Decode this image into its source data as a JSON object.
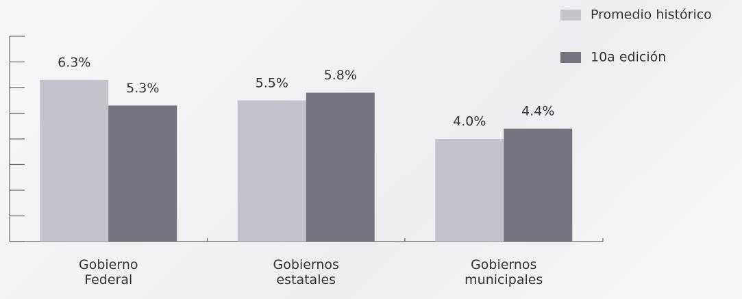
{
  "chart_data": {
    "type": "bar",
    "categories": [
      "Gobierno Federal",
      "Gobiernos estatales",
      "Gobiernos municipales"
    ],
    "series": [
      {
        "name": "Promedio histórico",
        "color": "#c4c3cc",
        "values": [
          6.3,
          5.5,
          4.0
        ],
        "value_labels": [
          "6.3%",
          "5.5%",
          "4.0%"
        ]
      },
      {
        "name": "10a edición",
        "color": "#74737f",
        "values": [
          5.3,
          5.8,
          4.4
        ],
        "value_labels": [
          "5.3%",
          "5.8%",
          "4.4%"
        ]
      }
    ],
    "ylim": [
      0,
      8
    ],
    "yticks": [
      0,
      1,
      2,
      3,
      4,
      5,
      6,
      7,
      8
    ],
    "legend": "top-right"
  }
}
